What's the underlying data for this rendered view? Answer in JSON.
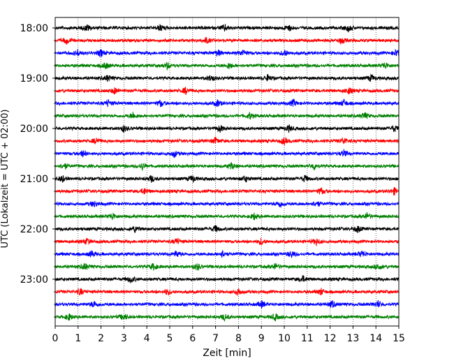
{
  "chart_data": {
    "type": "line",
    "subtype": "helicorder",
    "xlabel": "Zeit  [min]",
    "ylabel": "UTC (Lokalzeit = UTC + 02:00)",
    "xlim": [
      0,
      15
    ],
    "x_ticks": [
      0,
      1,
      2,
      3,
      4,
      5,
      6,
      7,
      8,
      9,
      10,
      11,
      12,
      13,
      14,
      15
    ],
    "x_tick_labels": [
      "0",
      "1",
      "2",
      "3",
      "4",
      "5",
      "6",
      "7",
      "8",
      "9",
      "10",
      "11",
      "12",
      "13",
      "14",
      "15"
    ],
    "grid": "vertical-dotted",
    "trace_colors": [
      "#000000",
      "#ff0000",
      "#0000ff",
      "#008000"
    ],
    "y_tick_labels": [
      "18:00",
      "19:00",
      "20:00",
      "21:00",
      "22:00",
      "23:00"
    ],
    "rows": [
      {
        "start": "18:00",
        "color": "#000000",
        "events": [
          1.4,
          4.6,
          7.4,
          10.2,
          12.8
        ]
      },
      {
        "start": "18:15",
        "color": "#ff0000",
        "events": [
          0.5,
          6.6,
          12.5
        ]
      },
      {
        "start": "18:30",
        "color": "#0000ff",
        "events": [
          1.0,
          2.0,
          7.1,
          8.2,
          10.0,
          14.9
        ]
      },
      {
        "start": "18:45",
        "color": "#008000",
        "events": [
          2.2,
          4.9,
          7.6,
          14.4
        ]
      },
      {
        "start": "19:00",
        "color": "#000000",
        "events": [
          2.3,
          6.8,
          9.3,
          13.8
        ]
      },
      {
        "start": "19:15",
        "color": "#ff0000",
        "events": [
          2.6,
          5.7,
          12.8
        ]
      },
      {
        "start": "19:30",
        "color": "#0000ff",
        "events": [
          2.3,
          4.6,
          7.1,
          10.4,
          12.6
        ]
      },
      {
        "start": "19:45",
        "color": "#008000",
        "events": [
          3.4,
          8.5,
          13.5
        ]
      },
      {
        "start": "20:00",
        "color": "#000000",
        "events": [
          3.0,
          7.2,
          10.2,
          14.8
        ]
      },
      {
        "start": "20:15",
        "color": "#ff0000",
        "events": [
          1.8,
          7.0,
          10.0,
          12.6
        ]
      },
      {
        "start": "20:30",
        "color": "#0000ff",
        "events": [
          1.2,
          5.2,
          12.6
        ]
      },
      {
        "start": "20:45",
        "color": "#008000",
        "events": [
          0.4,
          3.8,
          7.7,
          11.3
        ]
      },
      {
        "start": "21:00",
        "color": "#000000",
        "events": [
          0.3,
          4.2,
          6.0,
          8.3,
          10.9
        ]
      },
      {
        "start": "21:15",
        "color": "#ff0000",
        "events": [
          3.9,
          11.6,
          14.8
        ]
      },
      {
        "start": "21:30",
        "color": "#0000ff",
        "events": [
          1.7,
          9.8,
          11.4
        ]
      },
      {
        "start": "21:45",
        "color": "#008000",
        "events": [
          2.5,
          8.7,
          13.6
        ]
      },
      {
        "start": "22:00",
        "color": "#000000",
        "events": [
          3.5,
          7.0,
          13.2
        ]
      },
      {
        "start": "22:15",
        "color": "#ff0000",
        "events": [
          1.4,
          5.3,
          9.0,
          11.4
        ]
      },
      {
        "start": "22:30",
        "color": "#0000ff",
        "events": [
          1.6,
          5.3,
          7.3,
          10.3,
          13.4
        ]
      },
      {
        "start": "22:45",
        "color": "#008000",
        "events": [
          1.3,
          4.3,
          6.2,
          9.6,
          14.1
        ]
      },
      {
        "start": "23:00",
        "color": "#000000",
        "events": [
          3.3,
          10.8
        ]
      },
      {
        "start": "23:15",
        "color": "#ff0000",
        "events": [
          1.1,
          4.9,
          8.0,
          11.6
        ]
      },
      {
        "start": "23:30",
        "color": "#0000ff",
        "events": [
          1.7,
          9.0,
          12.1,
          14.1
        ]
      },
      {
        "start": "23:45",
        "color": "#008000",
        "events": [
          0.6,
          3.0,
          7.4,
          9.6
        ]
      }
    ]
  }
}
